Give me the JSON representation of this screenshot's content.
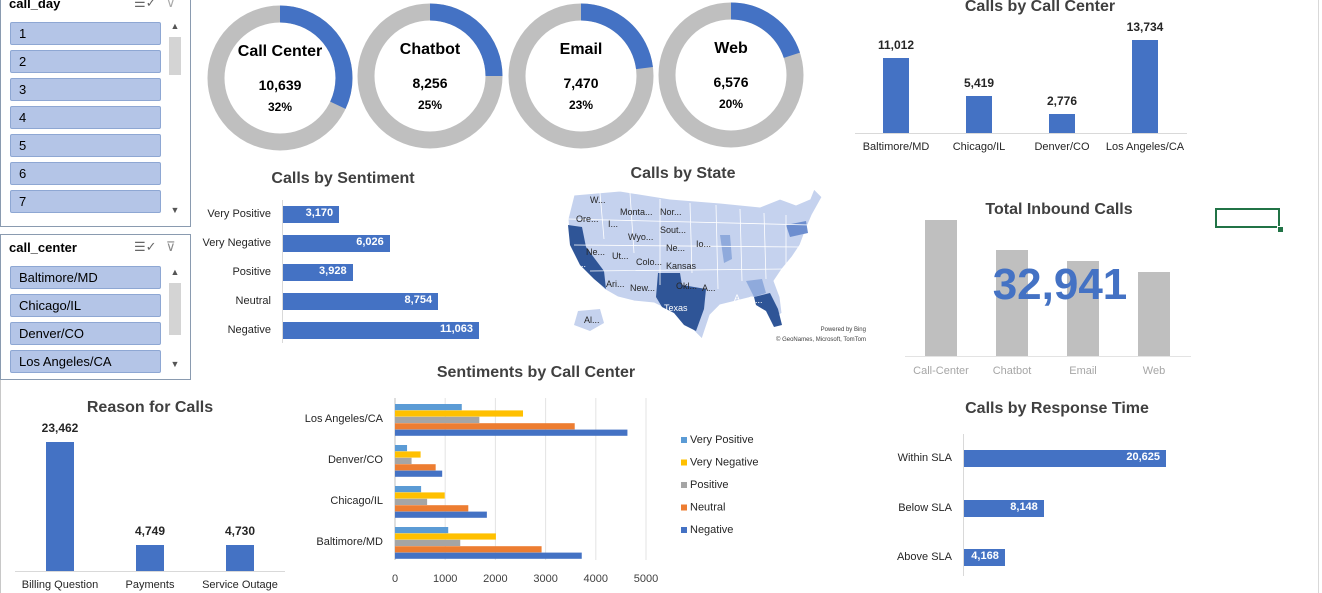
{
  "slicers": {
    "call_day": {
      "title": "call_day",
      "items": [
        "1",
        "2",
        "3",
        "4",
        "5",
        "6",
        "7"
      ]
    },
    "call_center": {
      "title": "call_center",
      "items": [
        "Baltimore/MD",
        "Chicago/IL",
        "Denver/CO",
        "Los Angeles/CA"
      ]
    }
  },
  "donuts": [
    {
      "title": "Call Center",
      "value": "10,639",
      "pct": "32%",
      "fraction": 0.32
    },
    {
      "title": "Chatbot",
      "value": "8,256",
      "pct": "25%",
      "fraction": 0.25
    },
    {
      "title": "Email",
      "value": "7,470",
      "pct": "23%",
      "fraction": 0.23
    },
    {
      "title": "Web",
      "value": "6,576",
      "pct": "20%",
      "fraction": 0.2
    }
  ],
  "colors": {
    "accent": "#4472c4",
    "gray": "#bfbfbf",
    "yellow": "#ffc000",
    "orange": "#ed7d31",
    "lightblue": "#5b9bd5",
    "midgray": "#a5a5a5"
  },
  "calls_by_call_center": {
    "title": "Calls by Call Center",
    "chart_data": {
      "type": "bar",
      "categories": [
        "Baltimore/MD",
        "Chicago/IL",
        "Denver/CO",
        "Los Angeles/CA"
      ],
      "values": [
        11012,
        5419,
        2776,
        13734
      ],
      "labels": [
        "11,012",
        "5,419",
        "2,776",
        "13,734"
      ]
    }
  },
  "calls_by_sentiment": {
    "title": "Calls by Sentiment",
    "chart_data": {
      "type": "bar",
      "orientation": "horizontal",
      "categories": [
        "Very Positive",
        "Very Negative",
        "Positive",
        "Neutral",
        "Negative"
      ],
      "values": [
        3170,
        6026,
        3928,
        8754,
        11063
      ],
      "labels": [
        "3,170",
        "6,026",
        "3,928",
        "8,754",
        "11,063"
      ]
    }
  },
  "calls_by_state": {
    "title": "Calls by State",
    "state_labels": [
      "W...",
      "Ore...",
      "I...",
      "Monta...",
      "Nor...",
      "Sout...",
      "Wyo...",
      "Ne...",
      "Ut...",
      "Colo...",
      "Ne...",
      "Io...",
      "C...",
      "Kansas",
      "Ari...",
      "New...",
      "Okl...",
      "A...",
      "A...",
      "G...",
      "Texas",
      "Al..."
    ],
    "credit1": "Powered by Bing",
    "credit2": "© GeoNames, Microsoft, TomTom"
  },
  "total_inbound": {
    "title": "Total Inbound Calls",
    "value": "32,941",
    "categories": [
      "Call-Center",
      "Chatbot",
      "Email",
      "Web"
    ],
    "values": [
      10639,
      8256,
      7470,
      6576
    ]
  },
  "reason_for_calls": {
    "title": "Reason for Calls",
    "chart_data": {
      "type": "bar",
      "categories": [
        "Billing Question",
        "Payments",
        "Service Outage"
      ],
      "values": [
        23462,
        4749,
        4730
      ],
      "labels": [
        "23,462",
        "4,749",
        "4,730"
      ]
    }
  },
  "sentiments_by_call_center": {
    "title": "Sentiments by Call Center",
    "chart_data": {
      "type": "bar",
      "orientation": "horizontal",
      "categories": [
        "Los Angeles/CA",
        "Denver/CO",
        "Chicago/IL",
        "Baltimore/MD"
      ],
      "series": [
        {
          "name": "Very Positive",
          "values": [
            1330,
            240,
            520,
            1060
          ]
        },
        {
          "name": "Very Negative",
          "values": [
            2550,
            510,
            990,
            2010
          ]
        },
        {
          "name": "Positive",
          "values": [
            1680,
            330,
            640,
            1300
          ]
        },
        {
          "name": "Neutral",
          "values": [
            3580,
            810,
            1460,
            2920
          ]
        },
        {
          "name": "Negative",
          "values": [
            4630,
            940,
            1830,
            3720
          ]
        }
      ],
      "xticks": [
        "0",
        "1000",
        "2000",
        "3000",
        "4000",
        "5000"
      ],
      "xlim": [
        0,
        5000
      ]
    }
  },
  "calls_by_response_time": {
    "title": "Calls by Response Time",
    "chart_data": {
      "type": "bar",
      "orientation": "horizontal",
      "categories": [
        "Within SLA",
        "Below SLA",
        "Above SLA"
      ],
      "values": [
        20625,
        8148,
        4168
      ],
      "labels": [
        "20,625",
        "8,148",
        "4,168"
      ]
    }
  }
}
